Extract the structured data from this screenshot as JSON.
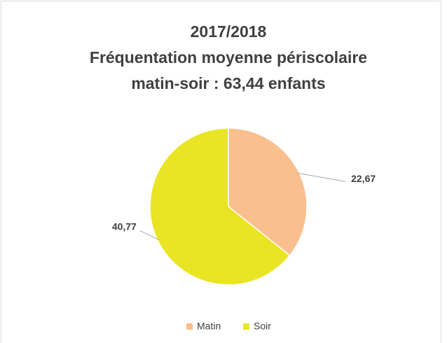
{
  "chart_data": {
    "type": "pie",
    "title": [
      "2017/2018",
      "Fréquentation moyenne périscolaire",
      "matin-soir : 63,44 enfants"
    ],
    "categories": [
      "Matin",
      "Soir"
    ],
    "values": [
      22.67,
      40.77
    ],
    "value_labels": [
      "22,67",
      "40,77"
    ],
    "colors": [
      "#fabf8f",
      "#e9e524"
    ],
    "legend": "bottom"
  }
}
